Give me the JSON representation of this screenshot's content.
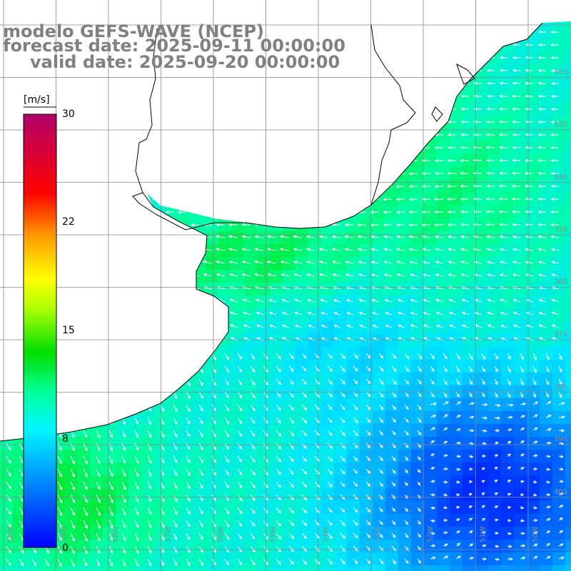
{
  "title": {
    "line1": "modelo GEFS-WAVE (NCEP)",
    "line2": "forecast date: 2025-09-11 00:00:00",
    "line3": "valid date: 2025-09-20 00:00:00"
  },
  "colorbar": {
    "unit": "[m/s]",
    "ticks": [
      "30",
      "22",
      "15",
      "8",
      "0"
    ],
    "tick_values": [
      30,
      22,
      15,
      8,
      0
    ],
    "range": [
      0,
      30
    ],
    "colors": [
      "#0000ff",
      "#0088ff",
      "#00e5ff",
      "#00ff80",
      "#00ee00",
      "#80ff00",
      "#ffff00",
      "#ffa500",
      "#ff3300",
      "#ff0000",
      "#e0004a",
      "#b0006a"
    ]
  },
  "map": {
    "region": "Sul do Brasil / Uruguai / Rio da Prata",
    "lon_range": [
      -70,
      -45
    ],
    "lat_range": [
      -42,
      -25
    ],
    "lat_labels": [
      "32S",
      "33S",
      "34S",
      "35S",
      "36S",
      "37S",
      "38S",
      "39S",
      "40S"
    ],
    "lon_labels": [
      "60W",
      "59W",
      "58W",
      "57W",
      "56W",
      "55W",
      "54W",
      "53W",
      "52W",
      "51W",
      "50W"
    ],
    "land_color": "#ffffff",
    "grid_color": "#888888",
    "coast_color": "#000000"
  }
}
